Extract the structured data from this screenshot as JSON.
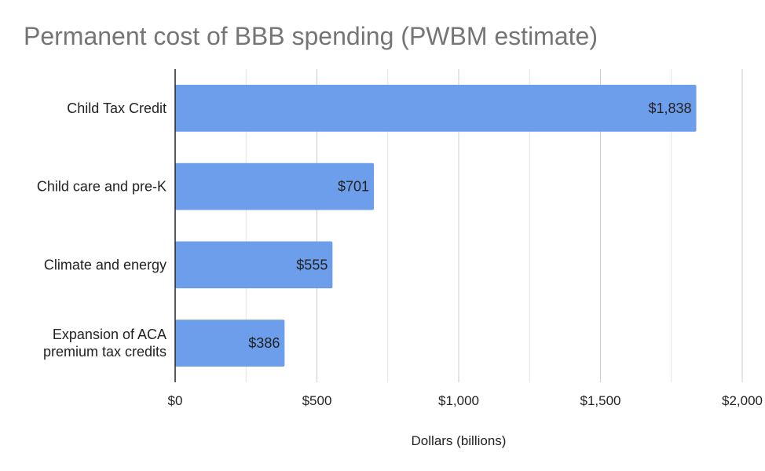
{
  "chart_data": {
    "type": "bar",
    "orientation": "horizontal",
    "title": "Permanent cost of BBB spending (PWBM estimate)",
    "xlabel": "Dollars (billions)",
    "ylabel": "",
    "categories": [
      [
        "Child Tax Credit"
      ],
      [
        "Child care and pre-K"
      ],
      [
        "Climate and energy"
      ],
      [
        "Expansion of ACA",
        "premium tax credits"
      ]
    ],
    "values": [
      1838,
      701,
      555,
      386
    ],
    "data_labels": [
      "$1,838",
      "$701",
      "$555",
      "$386"
    ],
    "xlim": [
      0,
      2000
    ],
    "x_ticks": [
      0,
      500,
      1000,
      1500,
      2000
    ],
    "x_tick_labels": [
      "$0",
      "$500",
      "$1,000",
      "$1,500",
      "$2,000"
    ],
    "grid": true,
    "legend": "none",
    "bar_color": "#6d9eeb"
  }
}
